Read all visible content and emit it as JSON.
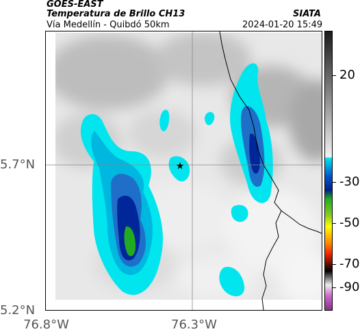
{
  "header": {
    "satellite": "GOES-EAST",
    "product": "Temperatura de Brillo CH13",
    "organization": "SIATA",
    "subtitle": "Vía Medellín - Quibdó 50km",
    "datetime": "2024-01-20 15:49"
  },
  "axes": {
    "lat_labels": [
      "5.7°N",
      "5.2°N"
    ],
    "lon_labels": [
      "76.8°W",
      "76.3°W"
    ]
  },
  "colorbar": {
    "labels": [
      "20",
      "-30",
      "-50",
      "-70",
      "-90"
    ],
    "colors": {
      "gray_dark": "#1a1a1a",
      "gray_light": "#f2f2f2",
      "cyan": "#00e5ee",
      "blue": "#0033aa",
      "green": "#22aa22",
      "yellow": "#ffff00",
      "red": "#ee2200",
      "black": "#000000",
      "purple": "#aa33aa"
    }
  },
  "map": {
    "marker": "star",
    "gridlines": true
  }
}
